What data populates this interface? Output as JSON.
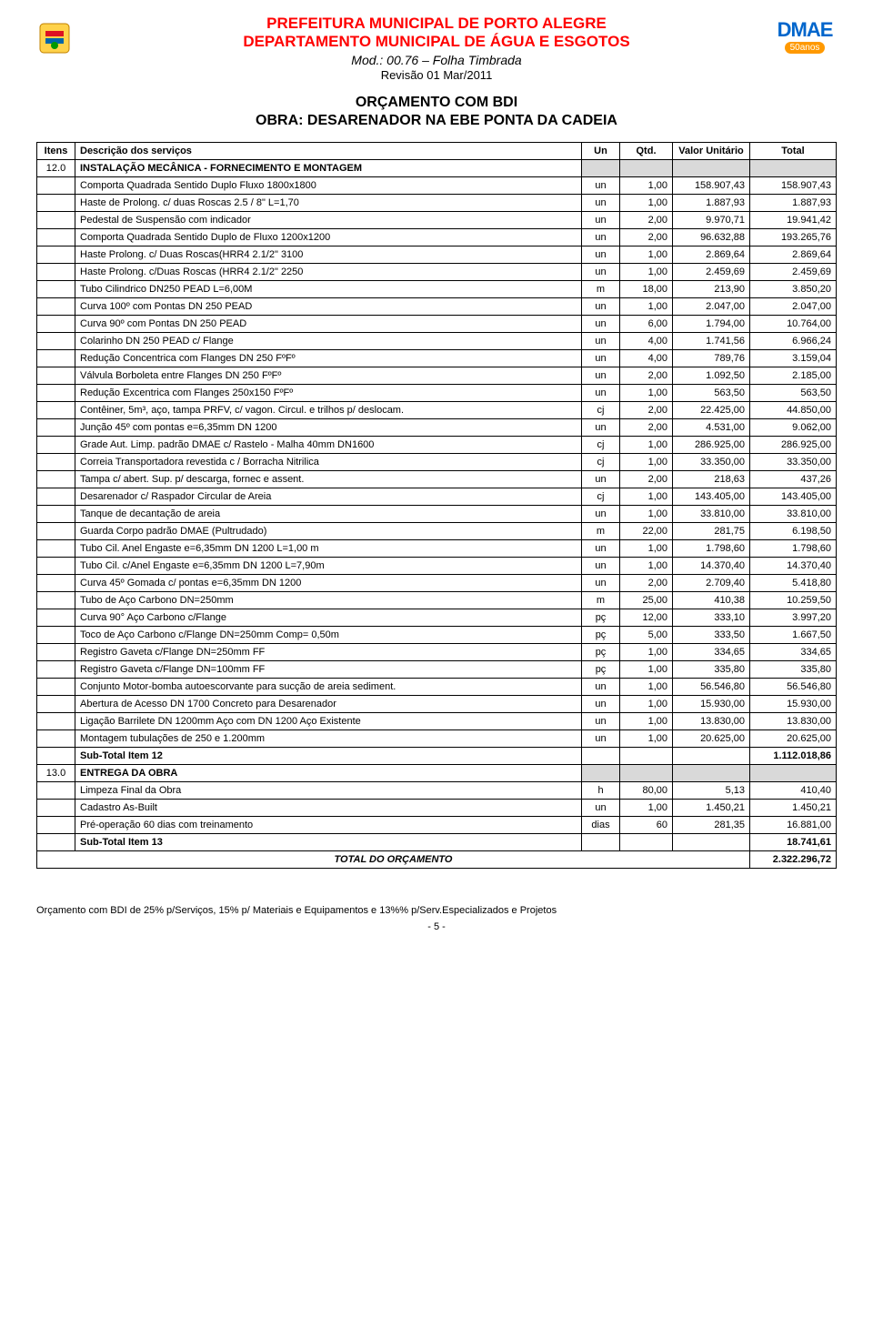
{
  "header": {
    "title1": "PREFEITURA MUNICIPAL DE PORTO ALEGRE",
    "title2": "DEPARTAMENTO MUNICIPAL DE ÁGUA E ESGOTOS",
    "mod": "Mod.: 00.76 – Folha Timbrada",
    "rev": "Revisão 01     Mar/2011",
    "logo_right_text": "DMAE",
    "logo_right_badge": "50anos"
  },
  "doc": {
    "title": "ORÇAMENTO COM BDI",
    "subtitle": "OBRA: DESARENADOR NA EBE PONTA DA CADEIA"
  },
  "columns": {
    "itens": "Itens",
    "desc": "Descrição dos serviços",
    "un": "Un",
    "qtd": "Qtd.",
    "unit": "Valor Unitário",
    "total": "Total"
  },
  "sections": [
    {
      "num": "12.0",
      "title": "INSTALAÇÃO MECÂNICA - FORNECIMENTO E MONTAGEM",
      "rows": [
        {
          "desc": "Comporta Quadrada Sentido Duplo Fluxo 1800x1800",
          "un": "un",
          "qtd": "1,00",
          "unit": "158.907,43",
          "total": "158.907,43"
        },
        {
          "desc": "Haste de Prolong. c/ duas Roscas 2.5 / 8\"  L=1,70",
          "un": "un",
          "qtd": "1,00",
          "unit": "1.887,93",
          "total": "1.887,93"
        },
        {
          "desc": "Pedestal de Suspensão com indicador",
          "un": "un",
          "qtd": "2,00",
          "unit": "9.970,71",
          "total": "19.941,42"
        },
        {
          "desc": "Comporta Quadrada Sentido Duplo de Fluxo 1200x1200",
          "un": "un",
          "qtd": "2,00",
          "unit": "96.632,88",
          "total": "193.265,76"
        },
        {
          "desc": "Haste Prolong. c/ Duas Roscas(HRR4 2.1/2\" 3100",
          "un": "un",
          "qtd": "1,00",
          "unit": "2.869,64",
          "total": "2.869,64"
        },
        {
          "desc": "Haste Prolong. c/Duas Roscas (HRR4 2.1/2\" 2250",
          "un": "un",
          "qtd": "1,00",
          "unit": "2.459,69",
          "total": "2.459,69"
        },
        {
          "desc": "Tubo Cilindrico DN250 PEAD L=6,00M",
          "un": "m",
          "qtd": "18,00",
          "unit": "213,90",
          "total": "3.850,20"
        },
        {
          "desc": "Curva 100º com Pontas DN 250  PEAD",
          "un": "un",
          "qtd": "1,00",
          "unit": "2.047,00",
          "total": "2.047,00"
        },
        {
          "desc": "Curva 90º com Pontas DN 250  PEAD",
          "un": "un",
          "qtd": "6,00",
          "unit": "1.794,00",
          "total": "10.764,00"
        },
        {
          "desc": "Colarinho  DN 250  PEAD c/ Flange",
          "un": "un",
          "qtd": "4,00",
          "unit": "1.741,56",
          "total": "6.966,24"
        },
        {
          "desc": "Redução Concentrica com Flanges DN 250 FºFº",
          "un": "un",
          "qtd": "4,00",
          "unit": "789,76",
          "total": "3.159,04"
        },
        {
          "desc": "Válvula Borboleta entre Flanges  DN 250 FºFº",
          "un": "un",
          "qtd": "2,00",
          "unit": "1.092,50",
          "total": "2.185,00"
        },
        {
          "desc": "Redução Excentrica com Flanges 250x150  FºFº",
          "un": "un",
          "qtd": "1,00",
          "unit": "563,50",
          "total": "563,50"
        },
        {
          "desc": "Contêiner, 5m³, aço, tampa PRFV, c/ vagon. Circul. e trilhos p/ deslocam.",
          "un": "cj",
          "qtd": "2,00",
          "unit": "22.425,00",
          "total": "44.850,00"
        },
        {
          "desc": "Junção 45º  com pontas e=6,35mm DN 1200",
          "un": "un",
          "qtd": "2,00",
          "unit": "4.531,00",
          "total": "9.062,00"
        },
        {
          "desc": "Grade Aut. Limp. padrão DMAE c/ Rastelo - Malha 40mm DN1600",
          "un": "cj",
          "qtd": "1,00",
          "unit": "286.925,00",
          "total": "286.925,00"
        },
        {
          "desc": "Correia Transportadora revestida c / Borracha Nitrilica",
          "un": "cj",
          "qtd": "1,00",
          "unit": "33.350,00",
          "total": "33.350,00"
        },
        {
          "desc": "Tampa c/ abert. Sup. p/ descarga, fornec  e assent.",
          "un": "un",
          "qtd": "2,00",
          "unit": "218,63",
          "total": "437,26"
        },
        {
          "desc": "Desarenador c/ Raspador Circular de Areia",
          "un": "cj",
          "qtd": "1,00",
          "unit": "143.405,00",
          "total": "143.405,00"
        },
        {
          "desc": "Tanque de decantação de areia",
          "un": "un",
          "qtd": "1,00",
          "unit": "33.810,00",
          "total": "33.810,00"
        },
        {
          "desc": "Guarda Corpo padrão DMAE (Pultrudado)",
          "un": "m",
          "qtd": "22,00",
          "unit": "281,75",
          "total": "6.198,50"
        },
        {
          "desc": "Tubo Cil. Anel Engaste e=6,35mm DN 1200 L=1,00 m",
          "un": "un",
          "qtd": "1,00",
          "unit": "1.798,60",
          "total": "1.798,60"
        },
        {
          "desc": "Tubo Cil. c/Anel Engaste e=6,35mm DN 1200 L=7,90m",
          "un": "un",
          "qtd": "1,00",
          "unit": "14.370,40",
          "total": "14.370,40"
        },
        {
          "desc": "Curva  45º Gomada c/ pontas e=6,35mm DN 1200",
          "un": "un",
          "qtd": "2,00",
          "unit": "2.709,40",
          "total": "5.418,80"
        },
        {
          "desc": "Tubo de Aço Carbono DN=250mm",
          "un": "m",
          "qtd": "25,00",
          "unit": "410,38",
          "total": "10.259,50"
        },
        {
          "desc": "Curva 90° Aço Carbono c/Flange",
          "un": "pç",
          "qtd": "12,00",
          "unit": "333,10",
          "total": "3.997,20"
        },
        {
          "desc": "Toco de Aço Carbono c/Flange DN=250mm  Comp= 0,50m",
          "un": "pç",
          "qtd": "5,00",
          "unit": "333,50",
          "total": "1.667,50"
        },
        {
          "desc": "Registro Gaveta  c/Flange DN=250mm  FF",
          "un": "pç",
          "qtd": "1,00",
          "unit": "334,65",
          "total": "334,65"
        },
        {
          "desc": "Registro Gaveta  c/Flange DN=100mm  FF",
          "un": "pç",
          "qtd": "1,00",
          "unit": "335,80",
          "total": "335,80"
        },
        {
          "desc": "Conjunto Motor-bomba autoescorvante para sucção de areia sediment.",
          "un": "un",
          "qtd": "1,00",
          "unit": "56.546,80",
          "total": "56.546,80"
        },
        {
          "desc": "Abertura de Acesso  DN 1700 Concreto  para Desarenador",
          "un": "un",
          "qtd": "1,00",
          "unit": "15.930,00",
          "total": "15.930,00"
        },
        {
          "desc": "Ligação Barrilete DN 1200mm Aço com DN 1200 Aço Existente",
          "un": "un",
          "qtd": "1,00",
          "unit": "13.830,00",
          "total": "13.830,00"
        },
        {
          "desc": "Montagem tubulações de 250 e 1.200mm",
          "un": "un",
          "qtd": "1,00",
          "unit": "20.625,00",
          "total": "20.625,00"
        }
      ],
      "subtotal": {
        "label": "Sub-Total Item 12",
        "value": "1.112.018,86"
      }
    },
    {
      "num": "13.0",
      "title": "ENTREGA DA OBRA",
      "rows": [
        {
          "desc": "Limpeza Final da Obra",
          "un": "h",
          "qtd": "80,00",
          "unit": "5,13",
          "total": "410,40"
        },
        {
          "desc": "Cadastro As-Built",
          "un": "un",
          "qtd": "1,00",
          "unit": "1.450,21",
          "total": "1.450,21"
        },
        {
          "desc": "Pré-operação 60 dias com treinamento",
          "un": "dias",
          "qtd": "60",
          "unit": "281,35",
          "total": "16.881,00"
        }
      ],
      "subtotal": {
        "label": "Sub-Total Item 13",
        "value": "18.741,61"
      }
    }
  ],
  "grand_total": {
    "label": "TOTAL DO ORÇAMENTO",
    "value": "2.322.296,72"
  },
  "footer": {
    "note": "Orçamento com BDI de 25% p/Serviços, 15% p/ Materiais e  Equipamentos e 13%% p/Serv.Especializados e Projetos",
    "page": "- 5 -"
  },
  "colors": {
    "red": "#ff0000",
    "blue": "#0066cc",
    "orange": "#ff9900",
    "grey": "#d9d9d9",
    "border": "#000000"
  }
}
